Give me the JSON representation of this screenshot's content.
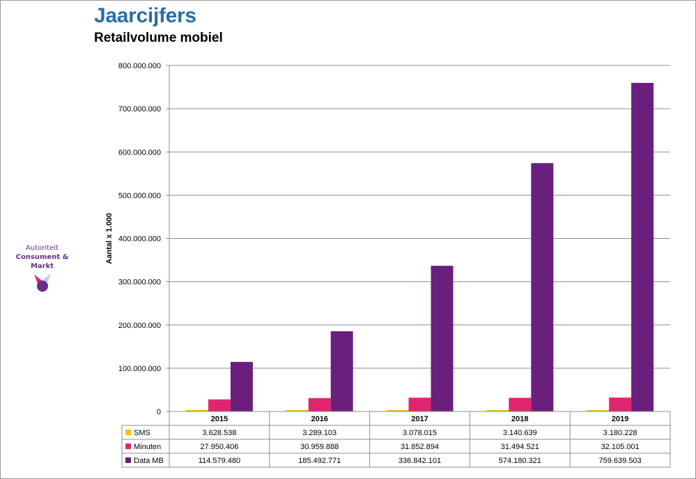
{
  "header": {
    "title": "Jaarcijfers",
    "subtitle": "Retailvolume mobiel"
  },
  "logo": {
    "line1": "Autoriteit",
    "line2": "Consument & Markt",
    "colors": {
      "magenta": "#e0256f",
      "purple": "#6b2f86",
      "lavender": "#c9c6e6"
    }
  },
  "chart_data": {
    "type": "bar",
    "title": "Retailvolume mobiel",
    "ylabel": "Aantal x 1.000",
    "xlabel": "",
    "ylim": [
      0,
      800000000
    ],
    "yticks": [
      0,
      100000000,
      200000000,
      300000000,
      400000000,
      500000000,
      600000000,
      700000000,
      800000000
    ],
    "ytick_labels": [
      "0",
      "100.000.000",
      "200.000.000",
      "300.000.000",
      "400.000.000",
      "500.000.000",
      "600.000.000",
      "700.000.000",
      "800.000.000"
    ],
    "grid": true,
    "legend_placement": "data-table-left",
    "categories": [
      "2015",
      "2016",
      "2017",
      "2018",
      "2019"
    ],
    "series": [
      {
        "name": "SMS",
        "color": "#f5c400",
        "values": [
          3628538,
          3289103,
          3078015,
          3140639,
          3180228
        ],
        "labels": [
          "3.628.538",
          "3.289.103",
          "3.078.015",
          "3.140.639",
          "3.180.228"
        ]
      },
      {
        "name": "Minuten",
        "color": "#e0256f",
        "values": [
          27950406,
          30959888,
          31852894,
          31494521,
          32105001
        ],
        "labels": [
          "27.950.406",
          "30.959.888",
          "31.852.894",
          "31.494.521",
          "32.105.001"
        ]
      },
      {
        "name": "Data MB",
        "color": "#6a1f7d",
        "values": [
          114579480,
          185492771,
          336842101,
          574180321,
          759639503
        ],
        "labels": [
          "114.579.480",
          "185.492.771",
          "336.842.101",
          "574.180.321",
          "759.639.503"
        ]
      }
    ]
  }
}
